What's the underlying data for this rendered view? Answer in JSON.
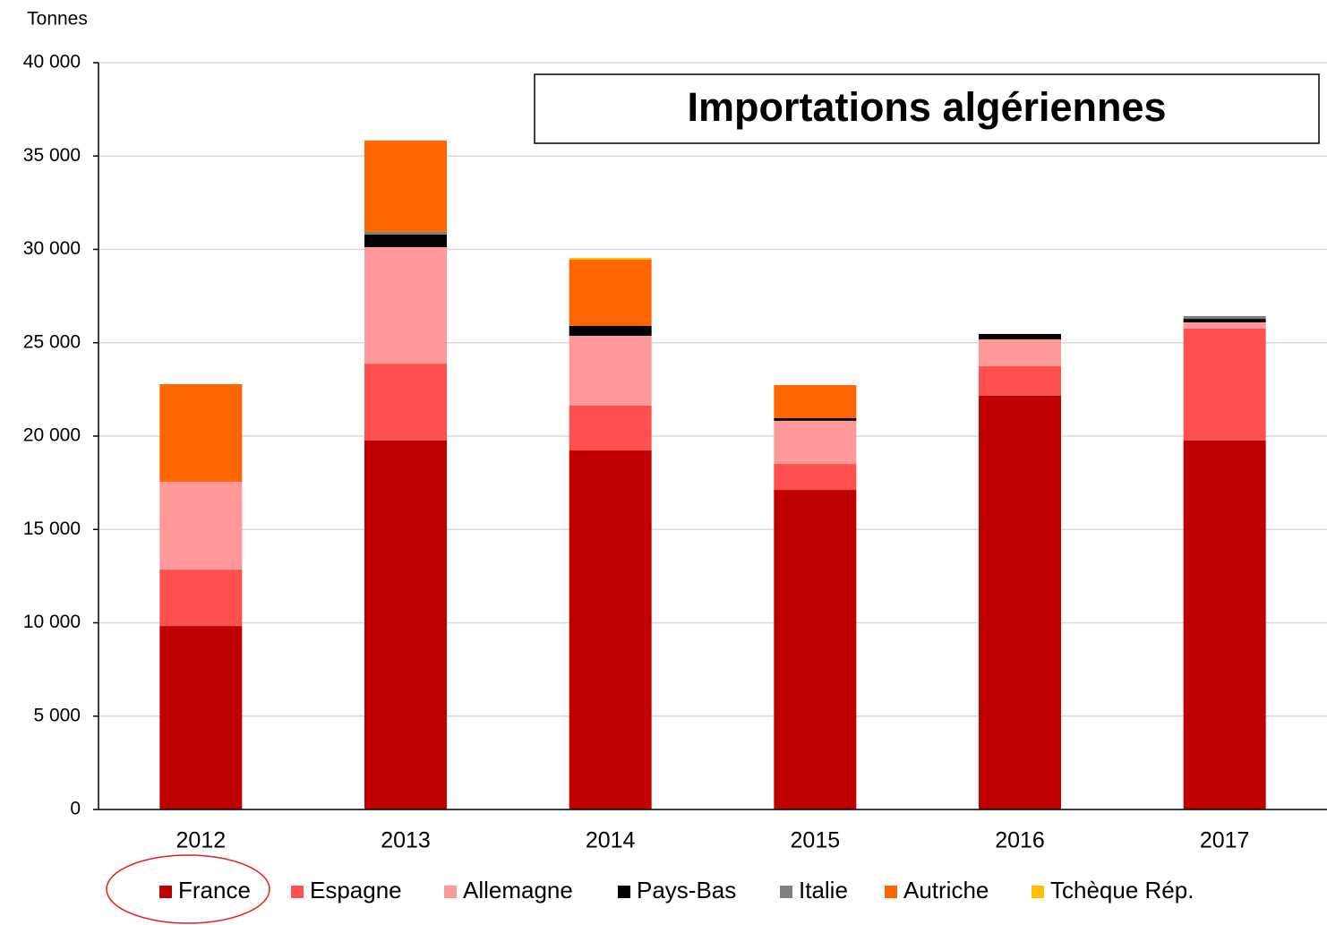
{
  "chart_data": {
    "type": "bar",
    "stacked": true,
    "title": "Importations algériennes",
    "y_label": "Tonnes",
    "categories": [
      "2012",
      "2013",
      "2014",
      "2015",
      "2016",
      "2017"
    ],
    "series": [
      {
        "name": "France",
        "color": "#c00000",
        "values": [
          9830,
          19760,
          19230,
          17120,
          22160,
          19760
        ]
      },
      {
        "name": "Espagne",
        "color": "#ff5050",
        "values": [
          3020,
          4120,
          2400,
          1390,
          1580,
          6000
        ]
      },
      {
        "name": "Allemagne",
        "color": "#ff9999",
        "values": [
          4700,
          6240,
          3740,
          2310,
          1440,
          330
        ]
      },
      {
        "name": "Pays-Bas",
        "color": "#000000",
        "values": [
          0,
          670,
          530,
          140,
          290,
          190
        ]
      },
      {
        "name": "Italie",
        "color": "#808080",
        "values": [
          0,
          150,
          0,
          0,
          0,
          150
        ]
      },
      {
        "name": "Autriche",
        "color": "#ff6600",
        "values": [
          5230,
          4890,
          3550,
          1770,
          0,
          0
        ]
      },
      {
        "name": "Tchèque Rép.",
        "color": "#ffc000",
        "values": [
          0,
          0,
          90,
          0,
          0,
          0
        ]
      }
    ],
    "ylim": [
      0,
      40000
    ],
    "yticks": [
      0,
      {
        "value": 5000,
        "label": "5 000"
      },
      {
        "value": 10000,
        "label": "10 000"
      },
      {
        "value": 15000,
        "label": "15 000"
      },
      {
        "value": 20000,
        "label": "20 000"
      },
      {
        "value": 25000,
        "label": "25 000"
      },
      {
        "value": 30000,
        "label": "30 000"
      },
      {
        "value": 35000,
        "label": "35 000"
      },
      {
        "value": 40000,
        "label": "40 000"
      }
    ],
    "grid": true,
    "legend": "bottom"
  }
}
